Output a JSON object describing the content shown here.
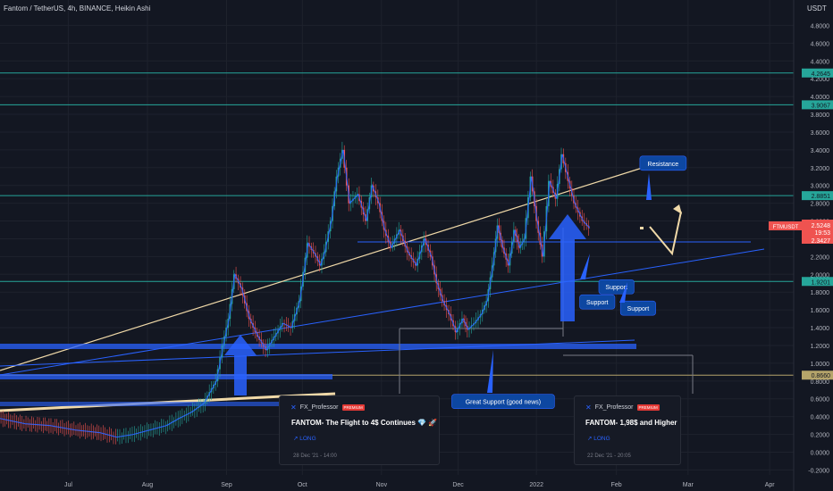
{
  "header": {
    "title": "Fantom / TetherUS, 4h, BINANCE, Heikin Ashi",
    "currency": "USDT"
  },
  "chart_data": {
    "type": "line",
    "ylim": [
      -0.2,
      5.3
    ],
    "xlim": [
      0,
      1000
    ],
    "y_ticks": [
      "4.8000",
      "4.6000",
      "4.4000",
      "4.2000",
      "4.0000",
      "3.8000",
      "3.6000",
      "3.4000",
      "3.2000",
      "3.0000",
      "2.8000",
      "2.6000",
      "2.4000",
      "2.2000",
      "2.0000",
      "1.8000",
      "1.6000",
      "1.4000",
      "1.2000",
      "1.0000",
      "0.8000",
      "0.6000",
      "0.4000",
      "0.2000",
      "0.0000",
      "-0.2000"
    ],
    "x_ticks": [
      {
        "label": "Jul",
        "x": 82
      },
      {
        "label": "Aug",
        "x": 177
      },
      {
        "label": "Sep",
        "x": 272
      },
      {
        "label": "Oct",
        "x": 363
      },
      {
        "label": "Nov",
        "x": 458
      },
      {
        "label": "Dec",
        "x": 550
      },
      {
        "label": "2022",
        "x": 644
      },
      {
        "label": "Feb",
        "x": 740
      },
      {
        "label": "Mar",
        "x": 826
      },
      {
        "label": "Apr",
        "x": 924
      }
    ],
    "series": [
      {
        "color": "#2962ff",
        "x": [
          0,
          30,
          60,
          90,
          120,
          140,
          160,
          180,
          200,
          215,
          230,
          245,
          260,
          268,
          275,
          282,
          290,
          300,
          310,
          320,
          330,
          340,
          350,
          360,
          370,
          380,
          385,
          390,
          398,
          405,
          412,
          420,
          430,
          440,
          447,
          455,
          462,
          470,
          480,
          490,
          500,
          510,
          518,
          525,
          532,
          540,
          548,
          556,
          562,
          570,
          578,
          585,
          592,
          598,
          604,
          611,
          618,
          624,
          630,
          638,
          645,
          652,
          660,
          668,
          675,
          683,
          690,
          700,
          708
        ],
        "y": [
          0.38,
          0.32,
          0.3,
          0.25,
          0.22,
          0.17,
          0.2,
          0.25,
          0.3,
          0.38,
          0.45,
          0.55,
          0.8,
          1.2,
          1.5,
          2.0,
          1.85,
          1.5,
          1.3,
          1.15,
          1.3,
          1.45,
          1.4,
          1.7,
          2.35,
          2.2,
          2.1,
          2.25,
          2.6,
          3.1,
          3.4,
          2.8,
          2.9,
          2.6,
          3.0,
          2.8,
          2.5,
          2.3,
          2.5,
          2.25,
          2.1,
          2.4,
          2.2,
          1.9,
          1.7,
          1.55,
          1.35,
          1.5,
          1.38,
          1.45,
          1.55,
          1.7,
          2.1,
          2.55,
          2.3,
          2.1,
          2.5,
          2.3,
          2.4,
          3.1,
          2.6,
          2.2,
          3.05,
          2.85,
          3.35,
          3.05,
          2.8,
          2.6,
          2.52
        ]
      }
    ],
    "hlines": [
      {
        "value": 4.2645,
        "label": "4.2645",
        "color": "#26a69a"
      },
      {
        "value": 3.9067,
        "label": "3.9067",
        "color": "#26a69a"
      },
      {
        "value": 2.8851,
        "label": "2.8851",
        "color": "#26a69a"
      },
      {
        "value": 1.9201,
        "label": "1.9201",
        "color": "#26a69a"
      },
      {
        "value": 0.866,
        "label": "0.8660",
        "color": "#b5a46a"
      }
    ],
    "price_labels": {
      "symbol": "FTMUSDT",
      "price": "2.5248",
      "countdown": "19:53",
      "value3": "2.3427"
    },
    "annotations": [
      {
        "text": "Resistance",
        "x": 796,
        "y": 3.25
      },
      {
        "text": "Support",
        "x": 740,
        "y": 1.86
      },
      {
        "text": "Support",
        "x": 717,
        "y": 1.69
      },
      {
        "text": "Support",
        "x": 766,
        "y": 1.62
      },
      {
        "text": "Great Support (good news)",
        "x": 604,
        "y": 0.57
      }
    ]
  },
  "ideas": [
    {
      "author": "FX_Professor",
      "badge": "PREMIUM",
      "title": "FANTOM- The Flight to 4$ Continues 💎 🚀",
      "direction": "↗ LONG",
      "date": "28 Dec '21 - 14:00"
    },
    {
      "author": "FX_Professor",
      "badge": "PREMIUM",
      "title": "FANTOM- 1,98$ and Higher",
      "direction": "↗ LONG",
      "date": "22 Dec '21 - 20:05"
    }
  ]
}
